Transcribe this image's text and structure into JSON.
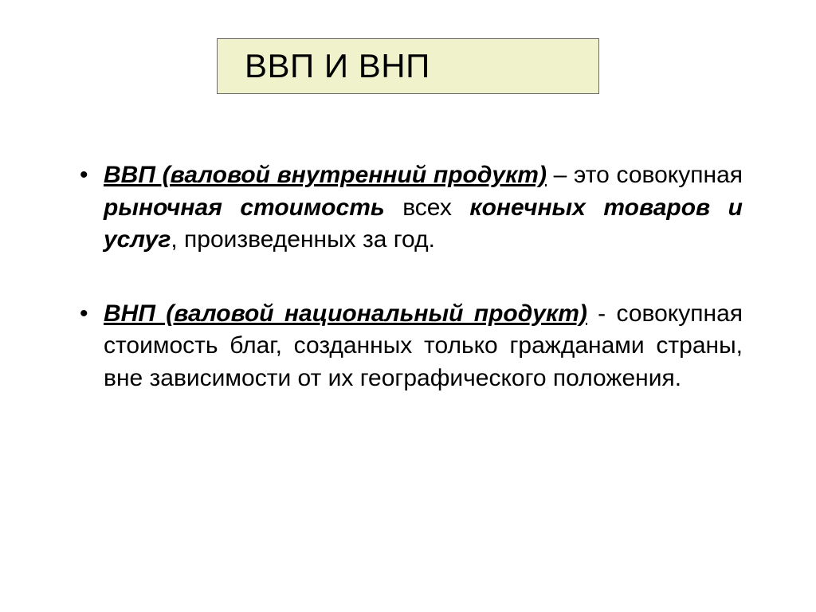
{
  "slide": {
    "title": "ВВП И ВНП",
    "title_box": {
      "background_color": "#f0f2cb",
      "border_color": "#6b6b6b"
    },
    "background_color": "#ffffff",
    "text_color": "#000000",
    "title_fontsize": 42,
    "body_fontsize": 30,
    "bullets": [
      {
        "term": "ВВП (валовой внутренний продукт)",
        "seg1": " – это совокупная ",
        "emph1": "рыночная стоимость",
        "seg2": " всех ",
        "emph2": "конечных товаров и услуг",
        "seg3": ", произведенных за год."
      },
      {
        "term": "ВНП (валовой национальный продукт)",
        "seg1": " - совокупная стоимость благ, созданных только гражданами страны, вне зависимости от их географического положения."
      }
    ]
  }
}
